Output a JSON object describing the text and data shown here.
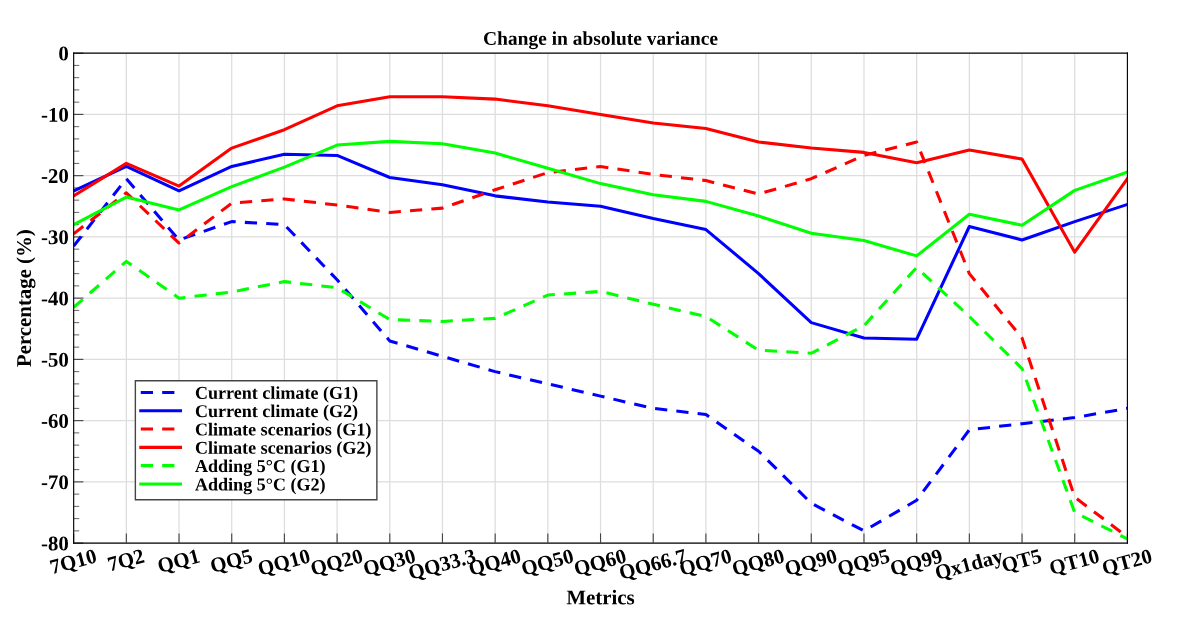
{
  "chart_data": {
    "type": "line",
    "title": "Change in absolute variance",
    "xlabel": "Metrics",
    "ylabel": "Percentage (%)",
    "categories": [
      "7Q10",
      "7Q2",
      "QQ1",
      "QQ5",
      "QQ10",
      "QQ20",
      "QQ30",
      "QQ33.3",
      "QQ40",
      "QQ50",
      "QQ60",
      "QQ66.7",
      "QQ70",
      "QQ80",
      "QQ90",
      "QQ95",
      "QQ99",
      "Qx1day",
      "QT5",
      "QT10",
      "QT20"
    ],
    "series": [
      {
        "name": "Current climate (G1)",
        "color": "#0000ff",
        "line_style": "dashed",
        "values": [
          -31.5,
          -20.5,
          -30.5,
          -27.5,
          -28,
          -37,
          -47,
          -49.5,
          -52,
          -54,
          -56,
          -58,
          -59,
          -65,
          -73.5,
          -78,
          -73,
          -61.5,
          -60.5,
          -59.5,
          -58
        ]
      },
      {
        "name": "Current climate (G2)",
        "color": "#0000ff",
        "line_style": "solid",
        "values": [
          -22.5,
          -18.5,
          -22.5,
          -18.5,
          -16.5,
          -16.7,
          -20.3,
          -21.5,
          -23.3,
          -24.3,
          -25,
          -27,
          -28.8,
          -36,
          -44,
          -46.5,
          -46.7,
          -28.3,
          -30.5,
          -27.5,
          -24.7
        ]
      },
      {
        "name": "Climate scenarios (G1)",
        "color": "#ff0000",
        "line_style": "dashed",
        "values": [
          -29.5,
          -22.8,
          -31,
          -24.5,
          -23.8,
          -24.8,
          -26,
          -25.3,
          -22.3,
          -19.5,
          -18.5,
          -19.8,
          -20.8,
          -23,
          -20.5,
          -16.7,
          -14.5,
          -36,
          -46.5,
          -72.5,
          -79
        ]
      },
      {
        "name": "Climate scenarios (G2)",
        "color": "#ff0000",
        "line_style": "solid",
        "values": [
          -23.3,
          -18,
          -21.7,
          -15.5,
          -12.5,
          -8.6,
          -7.1,
          -7.1,
          -7.5,
          -8.6,
          -10,
          -11.4,
          -12.3,
          -14.5,
          -15.5,
          -16.2,
          -17.9,
          -15.8,
          -17.3,
          -32.5,
          -20.5
        ]
      },
      {
        "name": "Adding 5°C (G1)",
        "color": "#00ff00",
        "line_style": "dashed",
        "values": [
          -41.5,
          -34,
          -40,
          -39,
          -37.3,
          -38.3,
          -43.5,
          -43.8,
          -43.3,
          -39.5,
          -38.9,
          -41,
          -43,
          -48.5,
          -49,
          -44.5,
          -35,
          -43,
          -51.5,
          -75,
          -79.3
        ]
      },
      {
        "name": "Adding 5°C (G2)",
        "color": "#00ff00",
        "line_style": "solid",
        "values": [
          -28,
          -23.5,
          -25.6,
          -21.8,
          -18.6,
          -15,
          -14.4,
          -14.8,
          -16.3,
          -18.8,
          -21.3,
          -23.1,
          -24.2,
          -26.6,
          -29.4,
          -30.6,
          -33.1,
          -26.3,
          -28.1,
          -22.4,
          -19.4
        ]
      }
    ],
    "ylim": [
      -80,
      0
    ],
    "yticks": [
      -80,
      -70,
      -60,
      -50,
      -40,
      -30,
      -20,
      -10,
      0
    ],
    "grid": true,
    "legend": "lower left",
    "marker": "none"
  }
}
